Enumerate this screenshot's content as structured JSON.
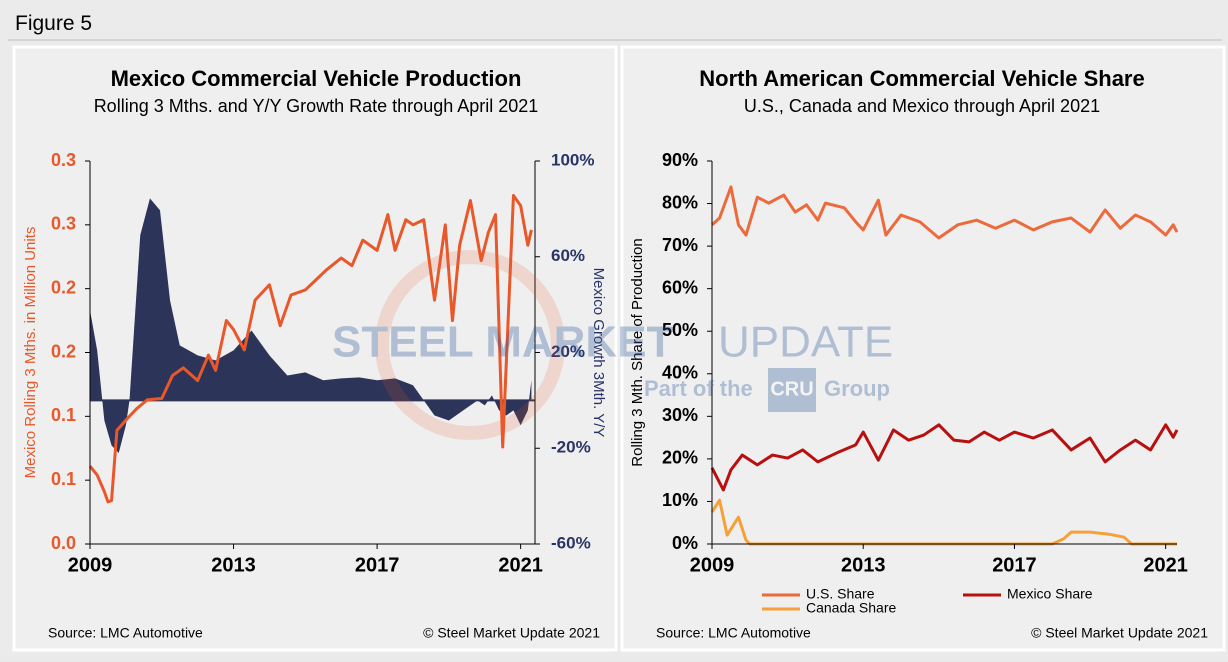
{
  "figure_label": "Figure 5",
  "watermark": {
    "brand": "STEEL MARKET",
    "brand_light": "UPDATE",
    "part_of": "Part of the",
    "group_logo": "CRU",
    "group": "Group"
  },
  "chart_data": [
    {
      "type": "line",
      "title": "Mexico Commercial Vehicle Production",
      "subtitle": "Rolling 3 Mths. and Y/Y Growth Rate through April 2021",
      "ylabel": "Mexico Rolling 3 Mths. in Million Units",
      "y2label": "Mexico Growth 3Mth. Y/Y",
      "source": "Source: LMC Automotive",
      "copyright": "© Steel Market Update 2021",
      "xlim": [
        2009,
        2021.4
      ],
      "xticks": [
        2009,
        2013,
        2017,
        2021
      ],
      "ylim": [
        0,
        0.3
      ],
      "yticks": [
        {
          "value": 0,
          "label": "0.0"
        },
        {
          "value": 0.05,
          "label": "0.1"
        },
        0.1,
        {
          "value": 0.15,
          "label": "0.2"
        },
        0.2,
        {
          "value": 0.25,
          "label": "0.3"
        },
        0.3
      ],
      "ytick_color": "#e8582a",
      "y2lim": [
        -60,
        100
      ],
      "y2ticks": [
        {
          "value": -60,
          "label": "-60%"
        },
        {
          "value": -20,
          "label": "-20%"
        },
        {
          "value": 20,
          "label": "20%"
        },
        {
          "value": 60,
          "label": "60%"
        },
        {
          "value": 100,
          "label": "100%"
        }
      ],
      "y2tick_color": "#2b3466",
      "series": [
        {
          "type": "area",
          "axis": "y2",
          "color": "#2d3459",
          "x": [
            2009.0,
            2009.2,
            2009.4,
            2009.6,
            2009.8,
            2010.0,
            2010.1,
            2010.4,
            2010.67,
            2010.95,
            2011.23,
            2011.5,
            2012.0,
            2012.5,
            2013.0,
            2013.5,
            2014.0,
            2014.5,
            2015.0,
            2015.5,
            2016.0,
            2016.5,
            2017.0,
            2017.5,
            2018.0,
            2018.3,
            2018.6,
            2019.0,
            2019.4,
            2019.8,
            2020.0,
            2020.2,
            2020.4,
            2020.6,
            2020.8,
            2021.0,
            2021.2,
            2021.3
          ],
          "values": [
            37.6,
            20.9,
            -8.4,
            -18.8,
            -22,
            -10.4,
            0,
            69,
            84.4,
            79.4,
            41.8,
            23,
            18.8,
            16.7,
            20.9,
            29.2,
            18.8,
            10.4,
            11.7,
            8.4,
            9.2,
            9.6,
            8.4,
            9.2,
            6.3,
            0,
            -6.3,
            -8.4,
            -4.2,
            0,
            -2.1,
            2.1,
            -4.2,
            -6.3,
            -4.2,
            -10.4,
            -4.2,
            8.4
          ]
        },
        {
          "type": "line",
          "axis": "y",
          "color": "#e8582a",
          "x": [
            2009.0,
            2009.2,
            2009.4,
            2009.5,
            2009.6,
            2009.75,
            2010.0,
            2010.3,
            2010.6,
            2011.0,
            2011.3,
            2011.6,
            2012.0,
            2012.3,
            2012.5,
            2012.8,
            2013.0,
            2013.3,
            2013.6,
            2014.0,
            2014.3,
            2014.6,
            2015.0,
            2015.3,
            2015.6,
            2016.0,
            2016.3,
            2016.6,
            2017.0,
            2017.3,
            2017.5,
            2017.8,
            2018.0,
            2018.3,
            2018.6,
            2018.9,
            2019.1,
            2019.3,
            2019.6,
            2019.9,
            2020.1,
            2020.3,
            2020.5,
            2020.8,
            2021.0,
            2021.2,
            2021.3
          ],
          "values": [
            0.061,
            0.054,
            0.041,
            0.033,
            0.034,
            0.089,
            0.097,
            0.106,
            0.113,
            0.114,
            0.132,
            0.138,
            0.128,
            0.148,
            0.136,
            0.175,
            0.168,
            0.152,
            0.191,
            0.203,
            0.171,
            0.195,
            0.199,
            0.207,
            0.215,
            0.224,
            0.218,
            0.238,
            0.23,
            0.258,
            0.23,
            0.254,
            0.25,
            0.254,
            0.191,
            0.25,
            0.175,
            0.234,
            0.269,
            0.222,
            0.244,
            0.258,
            0.076,
            0.273,
            0.265,
            0.234,
            0.246
          ]
        }
      ]
    },
    {
      "type": "line",
      "title": "North American Commercial Vehicle Share",
      "subtitle": "U.S., Canada and Mexico through April 2021",
      "ylabel": "Rolling 3 Mth. Share of Production",
      "source": "Source: LMC Automotive",
      "copyright": "© Steel Market Update 2021",
      "xlim": [
        2009,
        2021.3
      ],
      "xticks": [
        2009,
        2013,
        2017,
        2021
      ],
      "ylim": [
        0,
        90
      ],
      "yticks": [
        {
          "value": 0,
          "label": "0%"
        },
        {
          "value": 10,
          "label": "10%"
        },
        {
          "value": 20,
          "label": "20%"
        },
        {
          "value": 30,
          "label": "30%"
        },
        {
          "value": 40,
          "label": "40%"
        },
        {
          "value": 50,
          "label": "50%"
        },
        {
          "value": 60,
          "label": "60%"
        },
        {
          "value": 70,
          "label": "70%"
        },
        {
          "value": 80,
          "label": "80%"
        },
        {
          "value": 90,
          "label": "90%"
        }
      ],
      "ytick_color": "#000000",
      "legend": "bottom",
      "series": [
        {
          "name": "U.S. Share",
          "type": "line",
          "axis": "y",
          "color": "#ec6a3c",
          "x": [
            2009.0,
            2009.2,
            2009.5,
            2009.7,
            2009.9,
            2010.2,
            2010.5,
            2010.9,
            2011.2,
            2011.5,
            2011.8,
            2012.0,
            2012.5,
            2012.8,
            2013.0,
            2013.4,
            2013.6,
            2014.0,
            2014.5,
            2015.0,
            2015.5,
            2016.0,
            2016.5,
            2017.0,
            2017.5,
            2018.0,
            2018.5,
            2019.0,
            2019.4,
            2019.8,
            2020.2,
            2020.6,
            2021.0,
            2021.2,
            2021.3
          ],
          "values": [
            75,
            76.6,
            83.9,
            75,
            72.6,
            81.5,
            80.1,
            82,
            78,
            79.7,
            76.1,
            80.1,
            79,
            75.7,
            73.8,
            80.8,
            72.6,
            77.3,
            75.7,
            71.9,
            75,
            76.1,
            74.2,
            76.1,
            73.8,
            75.7,
            76.6,
            73.3,
            78.5,
            74.2,
            77.3,
            75.7,
            72.6,
            75,
            73.3
          ]
        },
        {
          "name": "Mexico Share",
          "type": "line",
          "axis": "y",
          "color": "#b80f0f",
          "x": [
            2009.0,
            2009.3,
            2009.5,
            2009.8,
            2010.2,
            2010.6,
            2011.0,
            2011.4,
            2011.8,
            2012.3,
            2012.8,
            2013.0,
            2013.4,
            2013.8,
            2014.2,
            2014.6,
            2015.0,
            2015.4,
            2015.8,
            2016.2,
            2016.6,
            2017.0,
            2017.5,
            2018.0,
            2018.5,
            2019.0,
            2019.4,
            2019.8,
            2020.2,
            2020.6,
            2021.0,
            2021.2,
            2021.3
          ],
          "values": [
            17.9,
            12.7,
            17.4,
            20.9,
            18.6,
            20.9,
            20.2,
            22.1,
            19.3,
            21.4,
            23.3,
            26.3,
            19.7,
            26.8,
            24.4,
            25.6,
            28,
            24.4,
            24,
            26.3,
            24.4,
            26.3,
            24.9,
            26.8,
            22.1,
            24.9,
            19.3,
            22.1,
            24.4,
            22.1,
            28,
            25.1,
            26.8
          ]
        },
        {
          "name": "Canada Share",
          "type": "line",
          "axis": "y",
          "color": "#f5a038",
          "x": [
            2009.0,
            2009.2,
            2009.4,
            2009.7,
            2009.9,
            2010.0,
            2018.0,
            2018.3,
            2018.5,
            2019.0,
            2019.5,
            2019.9,
            2020.1,
            2021.3
          ],
          "values": [
            7.5,
            10.3,
            2.1,
            6.3,
            0.9,
            0,
            0,
            1.2,
            2.8,
            2.8,
            2.3,
            1.6,
            0,
            0
          ]
        }
      ]
    }
  ]
}
